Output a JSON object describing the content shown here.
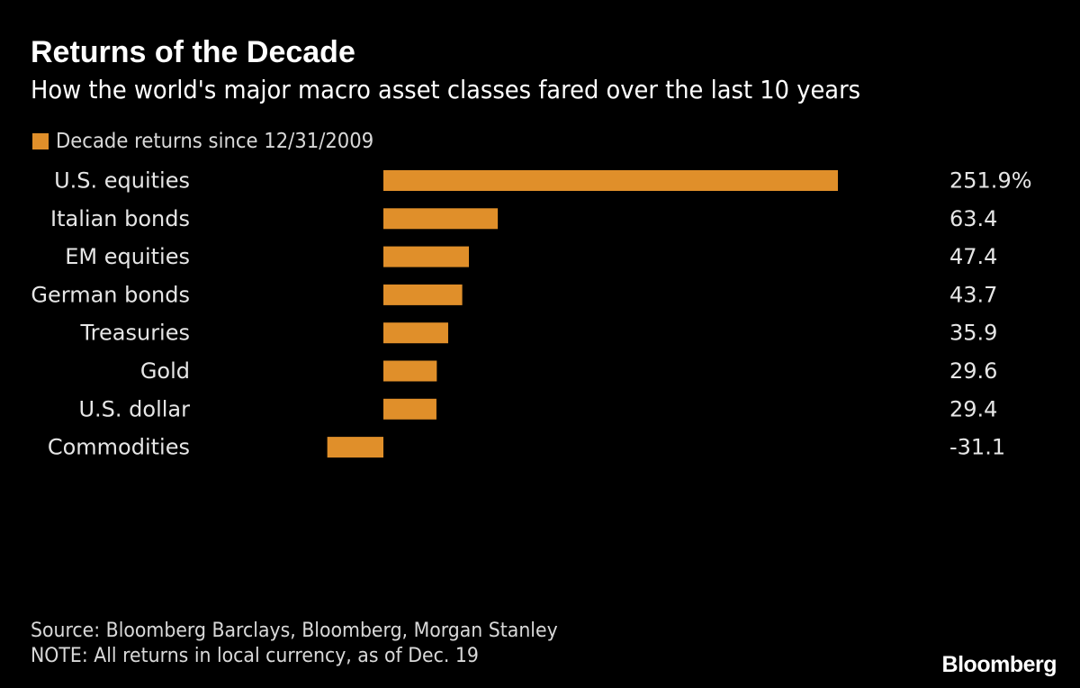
{
  "chart_data": {
    "type": "bar",
    "orientation": "horizontal",
    "title": "Returns of the Decade",
    "subtitle": "How the world's major macro asset classes fared over the last 10 years",
    "legend": [
      {
        "label": "Decade returns since 12/31/2009",
        "color": "#e08f2a"
      }
    ],
    "legend_placement": "top-left",
    "categories": [
      "U.S. equities",
      "Italian bonds",
      "EM equities",
      "German bonds",
      "Treasuries",
      "Gold",
      "U.S. dollar",
      "Commodities"
    ],
    "values": [
      251.9,
      63.4,
      47.4,
      43.7,
      35.9,
      29.6,
      29.4,
      -31.1
    ],
    "value_labels": [
      "251.9%",
      "63.4",
      "47.4",
      "43.7",
      "35.9",
      "29.6",
      "29.4",
      "-31.1"
    ],
    "xlim": [
      -31.1,
      251.9
    ],
    "xlabel": "",
    "ylabel": "",
    "grid": false
  },
  "footer": {
    "source": "Source: Bloomberg Barclays, Bloomberg, Morgan Stanley",
    "note": "NOTE: All returns in local currency, as of Dec. 19"
  },
  "brand": "Bloomberg",
  "colors": {
    "background": "#000000",
    "bar": "#e08f2a",
    "text": "#ffffff"
  }
}
